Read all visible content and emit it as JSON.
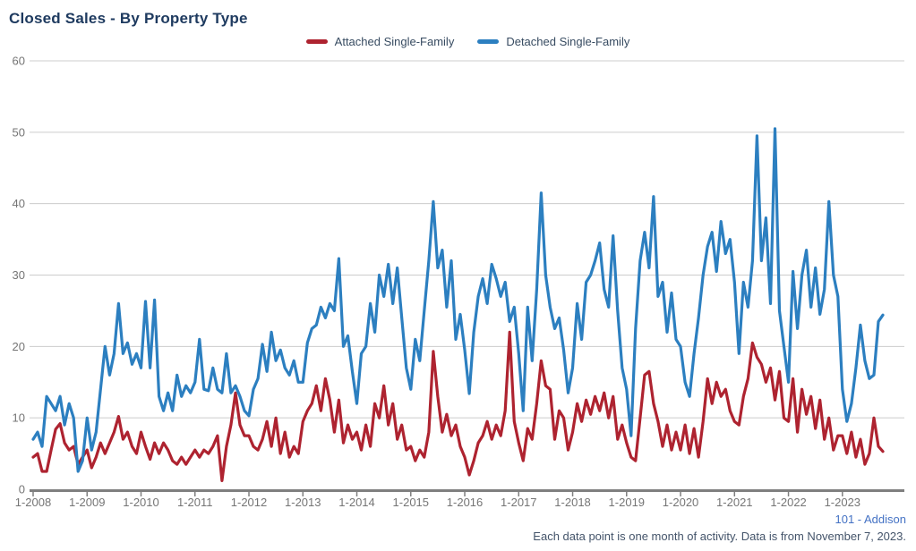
{
  "title": "Closed Sales - By Property Type",
  "legend": [
    {
      "label": "Attached Single-Family",
      "color": "#AE2330"
    },
    {
      "label": "Detached Single-Family",
      "color": "#2C7FC0"
    }
  ],
  "footer": {
    "source": "101 - Addison",
    "note": "Each data point is one month of activity. Data is from November 7, 2023."
  },
  "colors": {
    "title": "#1E3A5F",
    "axis_text": "#757575",
    "gridline": "#CCCCCC",
    "axis_line": "#7F7F7F"
  },
  "chart_data": {
    "type": "line",
    "title": "Closed Sales - By Property Type",
    "xlabel": "",
    "ylabel": "",
    "ylim": [
      0,
      60
    ],
    "y_ticks": [
      0,
      10,
      20,
      30,
      40,
      50,
      60
    ],
    "grid": "horizontal",
    "legend_position": "top-center",
    "x_start": "1-2008",
    "x_end": "10-2023",
    "points_per_year": 12,
    "x_tick_labels": [
      "1-2008",
      "1-2009",
      "1-2010",
      "1-2011",
      "1-2012",
      "1-2013",
      "1-2014",
      "1-2015",
      "1-2016",
      "1-2017",
      "1-2018",
      "1-2019",
      "1-2020",
      "1-2021",
      "1-2022",
      "1-2023"
    ],
    "series": [
      {
        "name": "Attached Single-Family",
        "color": "#AE2330",
        "values": [
          4.5,
          5,
          2.5,
          2.5,
          5.5,
          8.4,
          9.2,
          6.5,
          5.5,
          6,
          3.5,
          4.5,
          5.5,
          3,
          4.5,
          6.5,
          5,
          6.5,
          8,
          10.2,
          7,
          8,
          6,
          5,
          8,
          6,
          4.2,
          6.5,
          5,
          6.5,
          5.5,
          4,
          3.5,
          4.5,
          3.5,
          4.5,
          5.5,
          4.5,
          5.5,
          5,
          6,
          7.5,
          1.2,
          6,
          9,
          13.5,
          9,
          7.5,
          7.5,
          6,
          5.5,
          7,
          9.5,
          6,
          10,
          5,
          8,
          4.5,
          6,
          5,
          9.5,
          11,
          12,
          14.5,
          11,
          15.5,
          12.5,
          8,
          12.5,
          6.5,
          9,
          7,
          8,
          5.5,
          9,
          6,
          12,
          10,
          14.5,
          9,
          12,
          7,
          9,
          5.5,
          6,
          4,
          5.5,
          4.5,
          8,
          19.3,
          13,
          8,
          10.5,
          7.5,
          9,
          6,
          4.5,
          2,
          4,
          6.5,
          7.5,
          9.5,
          7,
          9,
          7.5,
          11,
          22,
          9.5,
          6.5,
          4,
          8.5,
          7,
          12,
          18,
          14.5,
          14,
          7,
          11,
          10,
          5.5,
          8,
          12,
          9.5,
          12.5,
          10.5,
          13,
          11,
          13.5,
          10,
          13,
          7,
          9,
          6.5,
          4.5,
          4,
          10,
          16,
          16.5,
          12,
          9.5,
          6,
          9,
          5.5,
          8,
          5.5,
          9,
          5,
          8.5,
          4.5,
          9.5,
          15.5,
          12,
          15,
          13,
          14,
          11,
          9.5,
          9,
          13,
          15.5,
          20.5,
          18.5,
          17.5,
          15,
          17,
          12.5,
          16.5,
          10,
          9.5,
          15.5,
          8,
          14,
          10.5,
          13,
          8.5,
          12.5,
          7,
          10,
          5.5,
          7.5,
          7.5,
          5,
          8,
          4.5,
          7,
          3.5,
          5,
          10,
          6,
          5.3
        ]
      },
      {
        "name": "Detached Single-Family",
        "color": "#2C7FC0",
        "values": [
          7,
          8,
          6,
          13,
          12,
          11,
          13,
          9,
          12,
          10,
          2.5,
          4,
          10,
          5.5,
          8,
          14,
          20,
          16,
          19,
          26,
          19,
          20.5,
          17.5,
          19,
          17,
          26.3,
          17,
          26.5,
          13,
          11,
          13.5,
          11,
          16,
          13,
          14.5,
          13.5,
          15,
          21,
          14,
          13.8,
          17,
          14,
          13.5,
          19,
          13.5,
          14.5,
          13,
          11,
          10.3,
          14,
          15.5,
          20.3,
          16.5,
          22,
          18,
          19.5,
          17,
          16,
          18,
          15,
          15,
          20.5,
          22.5,
          23,
          25.5,
          24,
          26,
          25,
          32.3,
          20,
          21.5,
          16.5,
          12,
          19,
          20,
          26,
          22,
          30,
          27,
          31.5,
          26,
          31,
          24,
          17,
          14,
          21,
          18,
          25,
          32,
          40.3,
          31,
          33.5,
          25.5,
          32,
          21,
          24.5,
          19.5,
          13.4,
          22,
          27,
          29.5,
          26,
          31.5,
          29.5,
          27,
          29,
          23.5,
          25.5,
          19,
          11,
          25.5,
          18,
          28,
          41.5,
          30,
          25.5,
          22.5,
          24,
          19.5,
          13.5,
          17,
          26,
          21,
          29,
          30,
          32,
          34.5,
          28,
          25.5,
          35.5,
          25,
          17,
          14,
          7.5,
          22.5,
          32,
          36,
          31,
          41,
          27,
          29,
          22,
          27.5,
          21,
          20,
          15,
          13,
          19,
          24,
          30,
          34,
          36,
          30.5,
          37.5,
          33,
          35,
          29,
          19,
          29,
          25.5,
          32,
          49.5,
          32,
          38,
          26,
          50.5,
          25,
          20,
          15,
          30.5,
          22.5,
          30,
          33.5,
          25.5,
          31,
          24.5,
          28,
          40.3,
          30,
          27,
          14,
          9.5,
          12,
          17,
          23,
          18,
          15.5,
          16,
          23.5,
          24.4
        ]
      }
    ]
  }
}
